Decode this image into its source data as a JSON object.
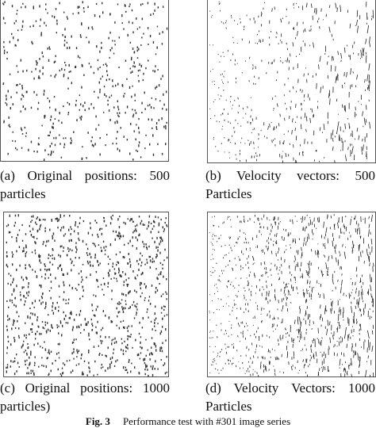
{
  "panels": [
    {
      "caption": "(a) Original positions: 500 particles"
    },
    {
      "caption": "(b) Velocity vectors: 500 Particles"
    },
    {
      "caption": "(c) Original positions: 1000 particles)"
    },
    {
      "caption": "(d) Velocity Vectors: 1000 Particles"
    }
  ],
  "figure": {
    "label": "Fig. 3",
    "caption": "Performance test with #301 image series"
  }
}
